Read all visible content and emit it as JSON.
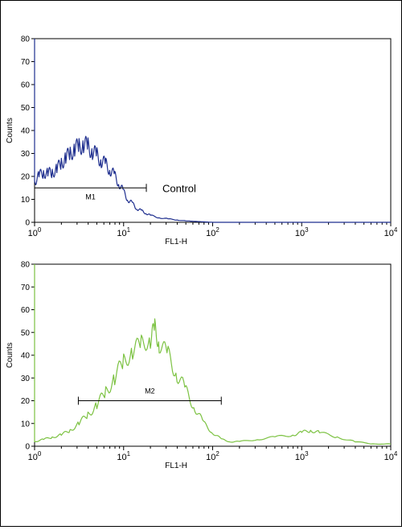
{
  "chart_data": [
    {
      "type": "line",
      "title": "",
      "xlabel": "FL1-H",
      "ylabel": "Counts",
      "xscale": "log",
      "xlim": [
        1,
        10000
      ],
      "ylim": [
        0,
        80
      ],
      "yticks": [
        0,
        10,
        20,
        30,
        40,
        50,
        60,
        70,
        80
      ],
      "xticks": [
        {
          "base": "10",
          "exp": "0"
        },
        {
          "base": "10",
          "exp": "1"
        },
        {
          "base": "10",
          "exp": "2"
        },
        {
          "base": "10",
          "exp": "3"
        },
        {
          "base": "10",
          "exp": "4"
        }
      ],
      "color": "#1f2f8f",
      "gate": {
        "label": "M1",
        "x_start": 1,
        "x_end": 18,
        "y": 15
      },
      "annotation": "Control",
      "x": [
        1.0,
        1.12,
        1.26,
        1.41,
        1.58,
        1.78,
        2.0,
        2.24,
        2.51,
        2.82,
        3.16,
        3.55,
        3.98,
        4.47,
        5.01,
        5.62,
        6.31,
        7.08,
        7.94,
        8.91,
        10.0,
        11.2,
        12.6,
        14.1,
        15.8,
        17.8,
        20.0,
        25.1,
        31.6,
        39.8,
        50.1,
        63.1,
        79.4,
        100,
        1000,
        10000
      ],
      "values": [
        18,
        20,
        22,
        21,
        22,
        23,
        26,
        28,
        30,
        32,
        33,
        34,
        33,
        31,
        29,
        27,
        25,
        23,
        20,
        17,
        13,
        10,
        8,
        6,
        5,
        4,
        3,
        2,
        1.5,
        1,
        0.6,
        0.4,
        0.2,
        0,
        0,
        0
      ]
    },
    {
      "type": "line",
      "title": "",
      "xlabel": "FL1-H",
      "ylabel": "Counts",
      "xscale": "log",
      "xlim": [
        1,
        10000
      ],
      "ylim": [
        0,
        80
      ],
      "yticks": [
        0,
        10,
        20,
        30,
        40,
        50,
        60,
        70,
        80
      ],
      "xticks": [
        {
          "base": "10",
          "exp": "0"
        },
        {
          "base": "10",
          "exp": "1"
        },
        {
          "base": "10",
          "exp": "2"
        },
        {
          "base": "10",
          "exp": "3"
        },
        {
          "base": "10",
          "exp": "4"
        }
      ],
      "color": "#7cc242",
      "gate": {
        "label": "M2",
        "x_start": 3.1,
        "x_end": 125,
        "y": 20
      },
      "x": [
        1.0,
        1.26,
        1.58,
        2.0,
        2.51,
        3.16,
        3.98,
        5.01,
        6.31,
        7.94,
        10.0,
        12.6,
        15.8,
        20.0,
        22.4,
        25.1,
        31.6,
        39.8,
        50.1,
        63.1,
        79.4,
        100,
        126,
        158,
        200,
        316,
        501,
        794,
        1000,
        1259,
        1585,
        2512,
        3981,
        6310,
        10000
      ],
      "values": [
        2,
        3,
        4,
        5,
        7,
        10,
        14,
        18,
        24,
        30,
        37,
        42,
        45,
        47,
        52,
        45,
        40,
        32,
        24,
        17,
        10,
        6,
        3,
        2,
        2,
        3,
        4,
        5,
        6,
        7,
        6,
        4,
        2,
        1,
        1
      ]
    }
  ]
}
